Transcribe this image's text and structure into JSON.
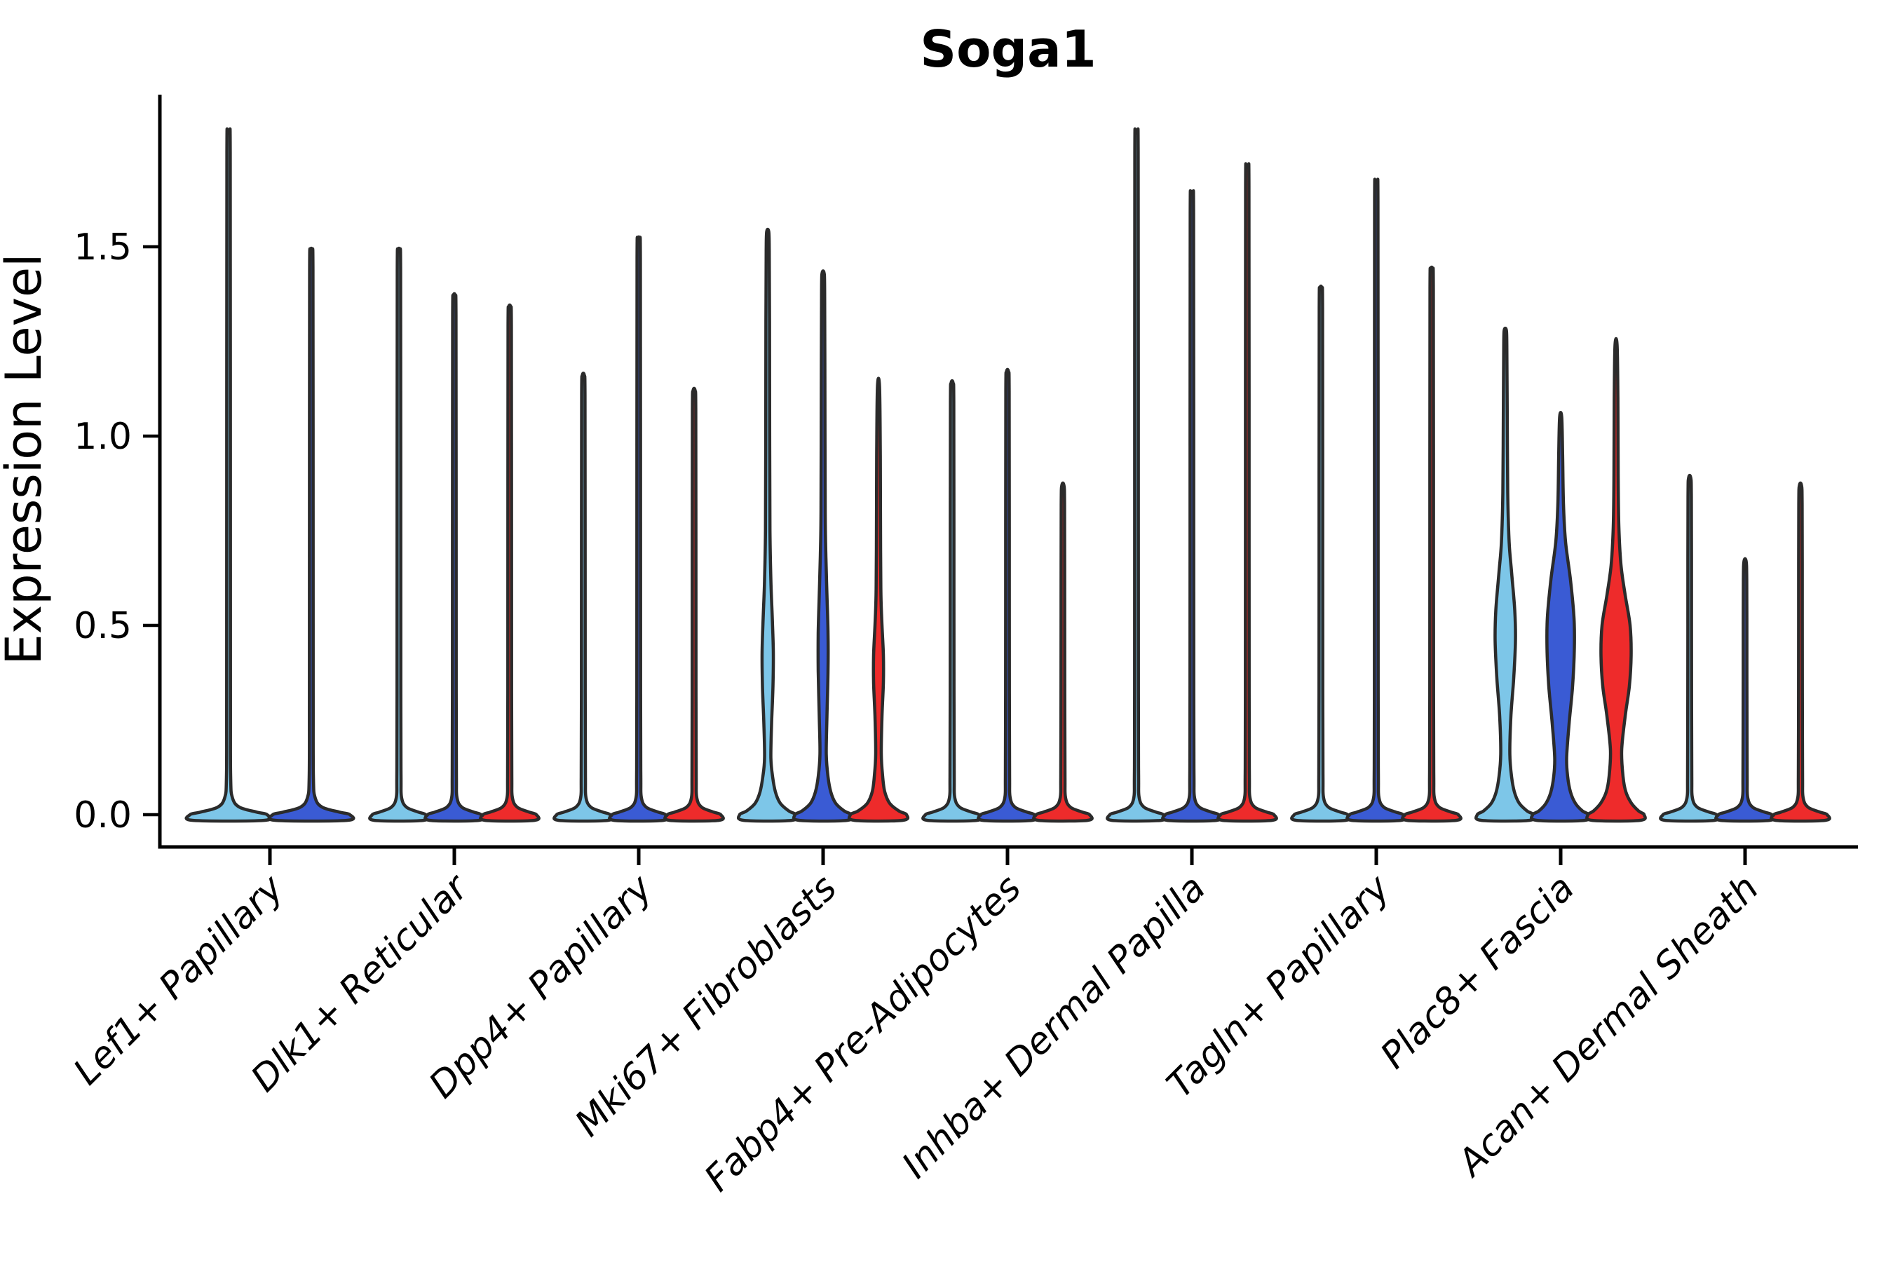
{
  "chart_data": {
    "type": "violin",
    "title": "Soga1",
    "ylabel": "Expression Level",
    "xlabel": "",
    "legend_position": "none",
    "grid": false,
    "ylim": [
      -0.085,
      1.9
    ],
    "yticks": [
      {
        "label": "0.0",
        "value": 0.0
      },
      {
        "label": "0.5",
        "value": 0.5
      },
      {
        "label": "1.0",
        "value": 1.0
      },
      {
        "label": "1.5",
        "value": 1.5
      }
    ],
    "categories": [
      "Lef1+ Papillary",
      "Dlk1+ Reticular",
      "Dpp4+ Papillary",
      "Mki67+ Fibroblasts",
      "Fabp4+ Pre-Adipocytes",
      "Inhba+ Dermal Papilla",
      "Tagln+ Papillary",
      "Plac8+ Fascia",
      "Acan+ Dermal Sheath"
    ],
    "colors": {
      "split1": "#7DC6E8",
      "split2": "#3A5BD4",
      "split3": "#EE2B2B",
      "outline": "#2B2B2B",
      "axis": "#000000"
    },
    "series": [
      {
        "name": "split1",
        "max_values": [
          1.8,
          1.49,
          1.16,
          1.54,
          1.14,
          1.8,
          1.39,
          1.28,
          0.89
        ]
      },
      {
        "name": "split2",
        "max_values": [
          1.49,
          1.37,
          1.52,
          1.43,
          1.17,
          1.64,
          1.67,
          1.05,
          0.67
        ]
      },
      {
        "name": "split3",
        "max_values": [
          null,
          1.34,
          1.12,
          1.13,
          0.87,
          1.71,
          1.44,
          1.24,
          0.87
        ]
      }
    ],
    "violins": [
      {
        "ci": 0,
        "slot": 0,
        "n": 2,
        "color": "split1",
        "shape": "spike",
        "max": 1.8
      },
      {
        "ci": 0,
        "slot": 1,
        "n": 2,
        "color": "split2",
        "shape": "spike",
        "max": 1.49
      },
      {
        "ci": 1,
        "slot": 0,
        "n": 3,
        "color": "split1",
        "shape": "spike",
        "max": 1.49
      },
      {
        "ci": 1,
        "slot": 1,
        "n": 3,
        "color": "split2",
        "shape": "spike",
        "max": 1.37
      },
      {
        "ci": 1,
        "slot": 2,
        "n": 3,
        "color": "split3",
        "shape": "spike",
        "max": 1.34
      },
      {
        "ci": 2,
        "slot": 0,
        "n": 3,
        "color": "split1",
        "shape": "spike",
        "max": 1.16
      },
      {
        "ci": 2,
        "slot": 1,
        "n": 3,
        "color": "split2",
        "shape": "spike",
        "max": 1.52
      },
      {
        "ci": 2,
        "slot": 2,
        "n": 3,
        "color": "split3",
        "shape": "spike",
        "max": 1.12
      },
      {
        "ci": 3,
        "slot": 0,
        "n": 3,
        "color": "split1",
        "shape": "bulge",
        "max": 1.54,
        "profile": [
          [
            -0.015,
            34
          ],
          [
            0,
            40
          ],
          [
            0.01,
            30
          ],
          [
            0.03,
            18
          ],
          [
            0.06,
            11
          ],
          [
            0.1,
            7
          ],
          [
            0.15,
            4.5
          ],
          [
            0.24,
            5.5
          ],
          [
            0.34,
            7.5
          ],
          [
            0.43,
            8
          ],
          [
            0.52,
            6.5
          ],
          [
            0.62,
            4.5
          ],
          [
            0.75,
            3.2
          ],
          [
            1.0,
            2.8
          ],
          [
            1.3,
            2.6
          ],
          [
            1.49,
            2.2
          ],
          [
            1.54,
            1.5
          ]
        ]
      },
      {
        "ci": 3,
        "slot": 1,
        "n": 3,
        "color": "split2",
        "shape": "bulge",
        "max": 1.43,
        "profile": [
          [
            -0.015,
            34
          ],
          [
            0,
            40
          ],
          [
            0.01,
            30
          ],
          [
            0.03,
            18
          ],
          [
            0.06,
            11
          ],
          [
            0.1,
            7
          ],
          [
            0.16,
            4.5
          ],
          [
            0.26,
            5.5
          ],
          [
            0.38,
            7
          ],
          [
            0.48,
            7
          ],
          [
            0.58,
            5.5
          ],
          [
            0.68,
            4
          ],
          [
            0.8,
            3
          ],
          [
            1.1,
            2.6
          ],
          [
            1.38,
            2.2
          ],
          [
            1.43,
            1.5
          ]
        ]
      },
      {
        "ci": 3,
        "slot": 2,
        "n": 3,
        "color": "split3",
        "shape": "bulge",
        "max": 1.13,
        "profile": [
          [
            -0.015,
            34
          ],
          [
            0,
            40
          ],
          [
            0.01,
            29
          ],
          [
            0.03,
            16
          ],
          [
            0.06,
            9
          ],
          [
            0.1,
            6
          ],
          [
            0.16,
            4
          ],
          [
            0.26,
            5
          ],
          [
            0.35,
            7
          ],
          [
            0.42,
            7
          ],
          [
            0.5,
            5
          ],
          [
            0.58,
            3.5
          ],
          [
            0.7,
            3
          ],
          [
            0.95,
            2.6
          ],
          [
            1.13,
            1.5
          ]
        ]
      },
      {
        "ci": 4,
        "slot": 0,
        "n": 3,
        "color": "split1",
        "shape": "spike",
        "max": 1.14
      },
      {
        "ci": 4,
        "slot": 1,
        "n": 3,
        "color": "split2",
        "shape": "spike",
        "max": 1.17
      },
      {
        "ci": 4,
        "slot": 2,
        "n": 3,
        "color": "split3",
        "shape": "spike",
        "max": 0.87
      },
      {
        "ci": 5,
        "slot": 0,
        "n": 3,
        "color": "split1",
        "shape": "spike",
        "max": 1.8
      },
      {
        "ci": 5,
        "slot": 1,
        "n": 3,
        "color": "split2",
        "shape": "spike",
        "max": 1.64
      },
      {
        "ci": 5,
        "slot": 2,
        "n": 3,
        "color": "split3",
        "shape": "spike",
        "max": 1.71
      },
      {
        "ci": 6,
        "slot": 0,
        "n": 3,
        "color": "split1",
        "shape": "spike",
        "max": 1.39
      },
      {
        "ci": 6,
        "slot": 1,
        "n": 3,
        "color": "split2",
        "shape": "spike",
        "max": 1.67
      },
      {
        "ci": 6,
        "slot": 2,
        "n": 3,
        "color": "split3",
        "shape": "spike",
        "max": 1.44
      },
      {
        "ci": 7,
        "slot": 0,
        "n": 3,
        "color": "split1",
        "shape": "bulge",
        "max": 1.28,
        "profile": [
          [
            -0.015,
            34
          ],
          [
            0,
            40
          ],
          [
            0.01,
            31
          ],
          [
            0.03,
            20
          ],
          [
            0.06,
            13
          ],
          [
            0.1,
            9
          ],
          [
            0.16,
            6.5
          ],
          [
            0.26,
            8
          ],
          [
            0.36,
            12
          ],
          [
            0.46,
            14.5
          ],
          [
            0.54,
            13.5
          ],
          [
            0.64,
            9
          ],
          [
            0.72,
            5.5
          ],
          [
            0.85,
            3.5
          ],
          [
            1.05,
            2.8
          ],
          [
            1.24,
            2.2
          ],
          [
            1.28,
            1.5
          ]
        ]
      },
      {
        "ci": 7,
        "slot": 1,
        "n": 3,
        "color": "split2",
        "shape": "bulge",
        "max": 1.05,
        "profile": [
          [
            -0.015,
            34
          ],
          [
            0,
            40
          ],
          [
            0.01,
            31
          ],
          [
            0.03,
            21
          ],
          [
            0.06,
            14
          ],
          [
            0.1,
            10
          ],
          [
            0.15,
            8.5
          ],
          [
            0.24,
            12
          ],
          [
            0.34,
            17
          ],
          [
            0.44,
            19.5
          ],
          [
            0.52,
            19
          ],
          [
            0.62,
            14
          ],
          [
            0.72,
            7
          ],
          [
            0.82,
            4
          ],
          [
            0.95,
            2.8
          ],
          [
            1.05,
            1.5
          ]
        ]
      },
      {
        "ci": 7,
        "slot": 2,
        "n": 3,
        "color": "split3",
        "shape": "bulge",
        "max": 1.24,
        "profile": [
          [
            -0.015,
            34
          ],
          [
            0,
            40
          ],
          [
            0.01,
            32
          ],
          [
            0.03,
            22
          ],
          [
            0.06,
            14
          ],
          [
            0.1,
            10
          ],
          [
            0.17,
            8
          ],
          [
            0.26,
            13
          ],
          [
            0.34,
            19
          ],
          [
            0.42,
            21.5
          ],
          [
            0.5,
            20
          ],
          [
            0.58,
            13
          ],
          [
            0.66,
            7
          ],
          [
            0.76,
            4
          ],
          [
            0.9,
            3
          ],
          [
            1.1,
            2.6
          ],
          [
            1.24,
            1.5
          ]
        ]
      },
      {
        "ci": 8,
        "slot": 0,
        "n": 3,
        "color": "split1",
        "shape": "spike",
        "max": 0.89
      },
      {
        "ci": 8,
        "slot": 1,
        "n": 3,
        "color": "split2",
        "shape": "spike",
        "max": 0.67
      },
      {
        "ci": 8,
        "slot": 2,
        "n": 3,
        "color": "split3",
        "shape": "spike",
        "max": 0.87
      }
    ]
  }
}
